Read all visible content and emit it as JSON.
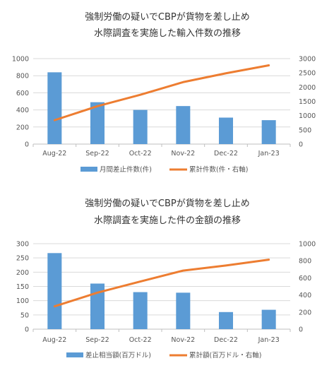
{
  "chart_data": [
    {
      "type": "bar",
      "title": [
        "強制労働の疑いでCBPが貨物を差し止め",
        "水際調査を実施した輸入件数の推移"
      ],
      "categories": [
        "Aug-22",
        "Sep-22",
        "Oct-22",
        "Nov-22",
        "Dec-22",
        "Jan-23"
      ],
      "y_left": {
        "ticks": [
          "0",
          "200",
          "400",
          "600",
          "800",
          "1000"
        ],
        "ylim": [
          0,
          1000
        ]
      },
      "y_right": {
        "ticks": [
          "0",
          "500",
          "1000",
          "1500",
          "2000",
          "2500",
          "3000"
        ],
        "ylim": [
          0,
          3000
        ]
      },
      "grid": true,
      "legend_position": "bottom",
      "series": [
        {
          "name": "月間差止件数(件)",
          "type": "bar",
          "axis": "left",
          "color": "#5b9bd5",
          "values": [
            840,
            490,
            400,
            445,
            310,
            280
          ]
        },
        {
          "name": "累計件数(件・右軸)",
          "type": "line",
          "axis": "right",
          "color": "#ed7d31",
          "values": [
            840,
            1330,
            1730,
            2175,
            2485,
            2765
          ]
        }
      ]
    },
    {
      "type": "bar",
      "title": [
        "強制労働の疑いでCBPが貨物を差し止め",
        "水際調査を実施した件の金額の推移"
      ],
      "categories": [
        "Aug-22",
        "Sep-22",
        "Oct-22",
        "Nov-22",
        "Dec-22",
        "Jan-23"
      ],
      "y_left": {
        "ticks": [
          "0",
          "50",
          "100",
          "150",
          "200",
          "250",
          "300"
        ],
        "ylim": [
          0,
          300
        ]
      },
      "y_right": {
        "ticks": [
          "0",
          "200",
          "400",
          "600",
          "800",
          "1000"
        ],
        "ylim": [
          0,
          1000
        ]
      },
      "grid": true,
      "legend_position": "bottom",
      "series": [
        {
          "name": "差止相当額(百万ドル)",
          "type": "bar",
          "axis": "left",
          "color": "#5b9bd5",
          "values": [
            267,
            160,
            130,
            128,
            60,
            68
          ]
        },
        {
          "name": "累計額(百万ドル・右軸)",
          "type": "line",
          "axis": "right",
          "color": "#ed7d31",
          "values": [
            267,
            427,
            557,
            685,
            745,
            813
          ]
        }
      ]
    }
  ]
}
